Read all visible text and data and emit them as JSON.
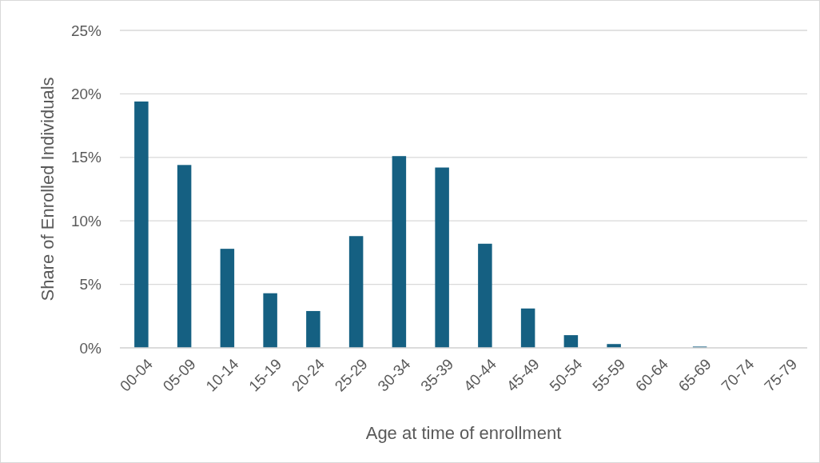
{
  "chart_data": {
    "type": "bar",
    "xlabel": "Age at time of enrollment",
    "ylabel": "Share of Enrolled Individuals",
    "categories": [
      "00-04",
      "05-09",
      "10-14",
      "15-19",
      "20-24",
      "25-29",
      "30-34",
      "35-39",
      "40-44",
      "45-49",
      "50-54",
      "55-59",
      "60-64",
      "65-69",
      "70-74",
      "75-79"
    ],
    "values": [
      19.4,
      14.4,
      7.8,
      4.3,
      2.9,
      8.8,
      15.1,
      14.2,
      8.2,
      3.1,
      1.0,
      0.3,
      0,
      0.1,
      0,
      0
    ],
    "color": "#156082",
    "ylim": [
      0,
      25
    ],
    "yticks": [
      {
        "value": 0,
        "label": "0%"
      },
      {
        "value": 5,
        "label": "5%"
      },
      {
        "value": 10,
        "label": "10%"
      },
      {
        "value": 15,
        "label": "15%"
      },
      {
        "value": 20,
        "label": "20%"
      },
      {
        "value": 25,
        "label": "25%"
      }
    ],
    "grid": "y"
  }
}
